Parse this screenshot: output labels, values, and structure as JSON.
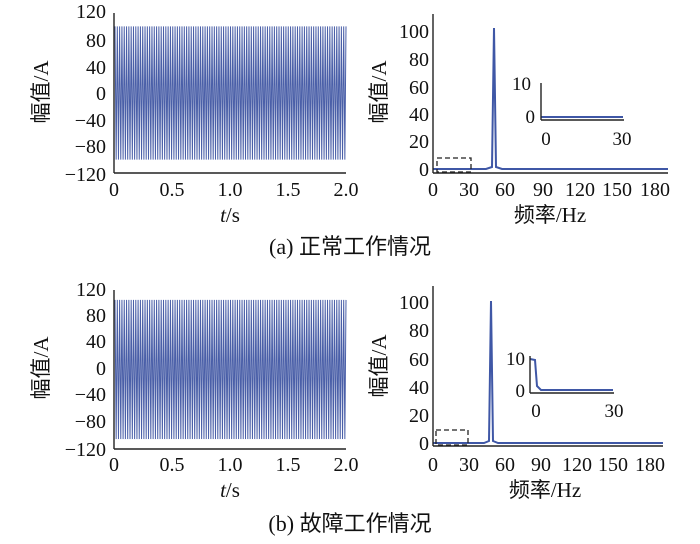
{
  "colors": {
    "line": "#4a5fa8",
    "axis": "#222222"
  },
  "chart_data": [
    {
      "id": "a-time",
      "type": "line",
      "xlabel_italic": "t",
      "xlabel_rest": "/s",
      "ylabel": "幅值/A",
      "xlim": [
        0,
        2.0
      ],
      "ylim": [
        -120,
        120
      ],
      "xticks": [
        "0",
        "0.5",
        "1.0",
        "1.5",
        "2.0"
      ],
      "yticks": [
        "120",
        "80",
        "40",
        "0",
        "−40",
        "−80",
        "−120"
      ],
      "series": [
        {
          "frequency_hz": 50,
          "amplitude": 100,
          "x": [
            0,
            2.0
          ]
        }
      ]
    },
    {
      "id": "a-spectrum",
      "type": "line",
      "xlabel": "频率/Hz",
      "ylabel": "幅值/A",
      "xlim": [
        0,
        190
      ],
      "ylim": [
        0,
        100
      ],
      "xticks": [
        "0",
        "30",
        "60",
        "90",
        "120",
        "150",
        "180"
      ],
      "yticks": [
        "100",
        "80",
        "60",
        "40",
        "20",
        "0"
      ],
      "series": [
        {
          "x": [
            0,
            48,
            50,
            52,
            190
          ],
          "y": [
            0,
            1,
            100,
            1,
            0
          ]
        }
      ],
      "inset": {
        "xlim": [
          0,
          30
        ],
        "ylim": [
          0,
          10
        ],
        "xticks": [
          "0",
          "30"
        ],
        "yticks": [
          "10",
          "0"
        ],
        "values": [
          0.5,
          0.5
        ]
      }
    },
    {
      "id": "b-time",
      "type": "line",
      "xlabel_italic": "t",
      "xlabel_rest": "/s",
      "ylabel": "幅值/A",
      "xlim": [
        0,
        2.0
      ],
      "ylim": [
        -120,
        120
      ],
      "xticks": [
        "0",
        "0.5",
        "1.0",
        "1.5",
        "2.0"
      ],
      "yticks": [
        "120",
        "80",
        "40",
        "0",
        "−40",
        "−80",
        "−120"
      ],
      "series": [
        {
          "frequency_hz": 50,
          "amplitude": 105,
          "x": [
            0,
            2.0
          ]
        }
      ]
    },
    {
      "id": "b-spectrum",
      "type": "line",
      "xlabel": "频率/Hz",
      "ylabel": "幅值/A",
      "xlim": [
        0,
        190
      ],
      "ylim": [
        0,
        100
      ],
      "xticks": [
        "0",
        "30",
        "60",
        "90",
        "120",
        "150",
        "180"
      ],
      "yticks": [
        "100",
        "80",
        "60",
        "40",
        "20",
        "0"
      ],
      "series": [
        {
          "x": [
            0,
            47,
            49,
            51,
            190
          ],
          "y": [
            0,
            1,
            100,
            1,
            0
          ]
        }
      ],
      "inset": {
        "xlim": [
          0,
          30
        ],
        "ylim": [
          0,
          10
        ],
        "xticks": [
          "0",
          "30"
        ],
        "yticks": [
          "10",
          "0"
        ],
        "values": [
          10,
          1
        ]
      }
    }
  ],
  "captions": {
    "a": "(a)  正常工作情况",
    "b": "(b)  故障工作情况"
  }
}
